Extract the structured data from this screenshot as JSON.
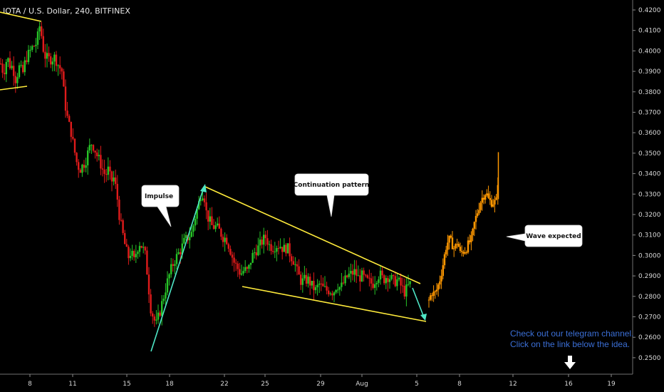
{
  "chart_data": {
    "type": "candlestick",
    "title": "IOTA / U.S. Dollar, 240, BITFINEX",
    "ylim": [
      0.245,
      0.423
    ],
    "y_ticks": [
      "0.4200",
      "0.4100",
      "0.4000",
      "0.3900",
      "0.3800",
      "0.3700",
      "0.3600",
      "0.3500",
      "0.3400",
      "0.3300",
      "0.3200",
      "0.3100",
      "0.3000",
      "0.2900",
      "0.2800",
      "0.2700",
      "0.2600",
      "0.2500"
    ],
    "x_ticks": [
      "8",
      "11",
      "15",
      "18",
      "22",
      "25",
      "29",
      "Aug",
      "5",
      "8",
      "12",
      "16",
      "19"
    ],
    "grid": false,
    "colors": {
      "up": "#27c427",
      "down": "#e01b1b",
      "projection": "#ff9800",
      "trendline": "#ffeb3b",
      "arrow": "#4ee6c6",
      "note": "#3b6fd6"
    },
    "annotations": {
      "impulse": "Impulse",
      "continuation": "Continuation pattern",
      "wave": "Wave expected",
      "note_line1": "Check out our telegram channel.",
      "note_line2": "Click on the link below the idea."
    },
    "price_path": [
      [
        0,
        0.395
      ],
      [
        5,
        0.389
      ],
      [
        10,
        0.397
      ],
      [
        14,
        0.393
      ],
      [
        18,
        0.392
      ],
      [
        22,
        0.386
      ],
      [
        27,
        0.392
      ],
      [
        32,
        0.389
      ],
      [
        36,
        0.396
      ],
      [
        41,
        0.399
      ],
      [
        46,
        0.402
      ],
      [
        52,
        0.404
      ],
      [
        55,
        0.413
      ],
      [
        58,
        0.408
      ],
      [
        62,
        0.398
      ],
      [
        67,
        0.396
      ],
      [
        72,
        0.396
      ],
      [
        77,
        0.397
      ],
      [
        82,
        0.393
      ],
      [
        87,
        0.39
      ],
      [
        90,
        0.378
      ],
      [
        93,
        0.37
      ],
      [
        96,
        0.365
      ],
      [
        100,
        0.36
      ],
      [
        104,
        0.352
      ],
      [
        108,
        0.345
      ],
      [
        112,
        0.342
      ],
      [
        116,
        0.344
      ],
      [
        120,
        0.346
      ],
      [
        124,
        0.351
      ],
      [
        128,
        0.355
      ],
      [
        132,
        0.353
      ],
      [
        136,
        0.349
      ],
      [
        140,
        0.346
      ],
      [
        144,
        0.342
      ],
      [
        148,
        0.339
      ],
      [
        152,
        0.342
      ],
      [
        156,
        0.336
      ],
      [
        160,
        0.338
      ],
      [
        164,
        0.33
      ],
      [
        168,
        0.318
      ],
      [
        172,
        0.311
      ],
      [
        176,
        0.304
      ],
      [
        180,
        0.299
      ],
      [
        184,
        0.302
      ],
      [
        188,
        0.297
      ],
      [
        192,
        0.303
      ],
      [
        196,
        0.306
      ],
      [
        200,
        0.304
      ],
      [
        204,
        0.3
      ],
      [
        208,
        0.287
      ],
      [
        211,
        0.275
      ],
      [
        215,
        0.27
      ],
      [
        219,
        0.266
      ],
      [
        224,
        0.272
      ],
      [
        229,
        0.279
      ],
      [
        234,
        0.286
      ],
      [
        239,
        0.292
      ],
      [
        244,
        0.297
      ],
      [
        249,
        0.3
      ],
      [
        254,
        0.303
      ],
      [
        259,
        0.307
      ],
      [
        264,
        0.309
      ],
      [
        269,
        0.311
      ],
      [
        274,
        0.319
      ],
      [
        278,
        0.324
      ],
      [
        282,
        0.33
      ],
      [
        286,
        0.331
      ],
      [
        290,
        0.32
      ],
      [
        294,
        0.317
      ],
      [
        298,
        0.314
      ],
      [
        303,
        0.314
      ],
      [
        308,
        0.312
      ],
      [
        313,
        0.309
      ],
      [
        318,
        0.308
      ],
      [
        323,
        0.303
      ],
      [
        328,
        0.297
      ],
      [
        333,
        0.294
      ],
      [
        338,
        0.291
      ],
      [
        343,
        0.293
      ],
      [
        348,
        0.292
      ],
      [
        353,
        0.299
      ],
      [
        358,
        0.302
      ],
      [
        363,
        0.304
      ],
      [
        368,
        0.307
      ],
      [
        373,
        0.309
      ],
      [
        378,
        0.305
      ],
      [
        383,
        0.304
      ],
      [
        388,
        0.305
      ],
      [
        393,
        0.305
      ],
      [
        398,
        0.303
      ],
      [
        403,
        0.304
      ],
      [
        408,
        0.3
      ],
      [
        413,
        0.297
      ],
      [
        418,
        0.291
      ],
      [
        423,
        0.287
      ],
      [
        428,
        0.288
      ],
      [
        433,
        0.288
      ],
      [
        438,
        0.285
      ],
      [
        443,
        0.283
      ],
      [
        448,
        0.286
      ],
      [
        453,
        0.284
      ],
      [
        458,
        0.283
      ],
      [
        463,
        0.283
      ],
      [
        468,
        0.282
      ],
      [
        473,
        0.286
      ],
      [
        478,
        0.284
      ],
      [
        483,
        0.287
      ],
      [
        488,
        0.29
      ],
      [
        493,
        0.291
      ],
      [
        498,
        0.292
      ],
      [
        503,
        0.289
      ],
      [
        508,
        0.29
      ],
      [
        513,
        0.288
      ],
      [
        518,
        0.287
      ],
      [
        523,
        0.286
      ],
      [
        528,
        0.289
      ],
      [
        533,
        0.291
      ],
      [
        538,
        0.288
      ],
      [
        543,
        0.29
      ],
      [
        548,
        0.289
      ],
      [
        553,
        0.287
      ],
      [
        558,
        0.288
      ],
      [
        563,
        0.285
      ],
      [
        568,
        0.282
      ],
      [
        573,
        0.285
      ],
      [
        578,
        0.287
      ]
    ],
    "projection_path": [
      [
        602,
        0.278
      ],
      [
        606,
        0.282
      ],
      [
        610,
        0.281
      ],
      [
        614,
        0.284
      ],
      [
        618,
        0.289
      ],
      [
        622,
        0.296
      ],
      [
        626,
        0.304
      ],
      [
        630,
        0.308
      ],
      [
        634,
        0.306
      ],
      [
        638,
        0.303
      ],
      [
        642,
        0.307
      ],
      [
        646,
        0.301
      ],
      [
        650,
        0.302
      ],
      [
        654,
        0.303
      ],
      [
        658,
        0.306
      ],
      [
        662,
        0.308
      ],
      [
        666,
        0.316
      ],
      [
        670,
        0.321
      ],
      [
        674,
        0.326
      ],
      [
        678,
        0.329
      ],
      [
        682,
        0.331
      ],
      [
        686,
        0.327
      ],
      [
        690,
        0.326
      ],
      [
        694,
        0.326
      ],
      [
        698,
        0.327
      ],
      [
        700,
        0.35
      ]
    ]
  }
}
